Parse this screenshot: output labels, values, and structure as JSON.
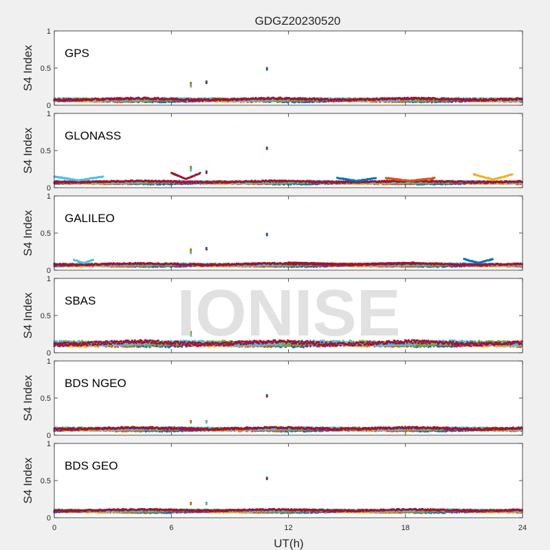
{
  "watermark": "IONISE",
  "chart_data": {
    "type": "scatter",
    "title": "GDGZ20230520",
    "xlabel": "UT(h)",
    "ylabel": "S4 Index",
    "xlim": [
      0,
      24
    ],
    "ylim": [
      0,
      1
    ],
    "xticks": [
      0,
      6,
      12,
      18,
      24
    ],
    "yticks": [
      0,
      0.5,
      1
    ],
    "xtick_labels": [
      "0",
      "6",
      "12",
      "18",
      "24"
    ],
    "ytick_labels": [
      "0",
      "0.5",
      "1"
    ],
    "grid": false,
    "series_colors": [
      "#0072BD",
      "#D95319",
      "#EDB120",
      "#7E2F8E",
      "#77AC30",
      "#4DBEEE",
      "#A2142F"
    ],
    "panels": [
      {
        "label": "GPS",
        "baseline": 0.07,
        "spread": 0.025,
        "outliers": [
          {
            "x": 7.0,
            "y": 0.3
          },
          {
            "x": 7.0,
            "y": 0.27
          },
          {
            "x": 7.8,
            "y": 0.32
          },
          {
            "x": 10.9,
            "y": 0.5
          }
        ]
      },
      {
        "label": "GLONASS",
        "baseline": 0.07,
        "spread": 0.02,
        "arcs": [
          {
            "x0": 0,
            "x1": 2.5,
            "y": 0.15
          },
          {
            "x0": 6.0,
            "x1": 7.5,
            "y": 0.2
          },
          {
            "x0": 14.5,
            "x1": 16.5,
            "y": 0.13
          },
          {
            "x0": 17.0,
            "x1": 19.5,
            "y": 0.13
          },
          {
            "x0": 21.5,
            "x1": 23.5,
            "y": 0.18
          }
        ],
        "outliers": [
          {
            "x": 7.0,
            "y": 0.28
          },
          {
            "x": 7.0,
            "y": 0.25
          },
          {
            "x": 7.8,
            "y": 0.22
          },
          {
            "x": 10.9,
            "y": 0.54
          }
        ]
      },
      {
        "label": "GALILEO",
        "baseline": 0.07,
        "spread": 0.02,
        "arcs": [
          {
            "x0": 1.0,
            "x1": 2.0,
            "y": 0.14
          },
          {
            "x0": 12.0,
            "x1": 18.5,
            "y": 0.1
          },
          {
            "x0": 21.0,
            "x1": 22.5,
            "y": 0.15
          }
        ],
        "outliers": [
          {
            "x": 7.0,
            "y": 0.28
          },
          {
            "x": 7.0,
            "y": 0.25
          },
          {
            "x": 7.8,
            "y": 0.3
          },
          {
            "x": 10.9,
            "y": 0.49
          }
        ]
      },
      {
        "label": "SBAS",
        "baseline": 0.12,
        "spread": 0.045,
        "outliers": [
          {
            "x": 7.0,
            "y": 0.28
          },
          {
            "x": 7.0,
            "y": 0.25
          }
        ]
      },
      {
        "label": "BDS NGEO",
        "baseline": 0.08,
        "spread": 0.025,
        "outliers": [
          {
            "x": 7.0,
            "y": 0.19
          },
          {
            "x": 7.8,
            "y": 0.19
          },
          {
            "x": 10.9,
            "y": 0.54
          }
        ]
      },
      {
        "label": "BDS GEO",
        "baseline": 0.09,
        "spread": 0.02,
        "outliers": [
          {
            "x": 7.0,
            "y": 0.2
          },
          {
            "x": 7.8,
            "y": 0.2
          },
          {
            "x": 10.9,
            "y": 0.54
          }
        ]
      }
    ]
  }
}
